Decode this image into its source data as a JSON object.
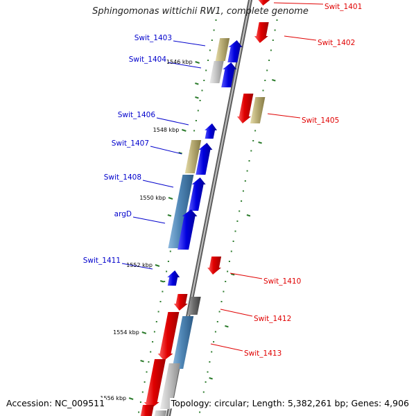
{
  "title": "Sphingomonas wittichii RW1, complete genome",
  "footer": {
    "accession": "Accession: NC_009511",
    "summary": "Topology: circular; Length: 5,382,261 bp; Genes: 4,906"
  },
  "colors": {
    "backbone": "#9a9a9a",
    "backbone_edge": "#555555",
    "ticks": "#2e7d2e",
    "forward_label": "#e00000",
    "reverse_label": "#0000cc",
    "red": "#e00000",
    "blue": "#0000dd",
    "olive": "#b9ad75",
    "steel": "#4f86b5",
    "gray": "#bdbdbd",
    "dark_gray": "#6b6b6b"
  },
  "scale_labels": [
    "1546 kbp",
    "1548 kbp",
    "1550 kbp",
    "1552 kbp",
    "1554 kbp",
    "1556 kbp"
  ],
  "gene_labels": {
    "forward": [
      "Swit_1401",
      "Swit_1402",
      "Swit_1405",
      "Swit_1410",
      "Swit_1412",
      "Swit_1413"
    ],
    "reverse": [
      "Swit_1403",
      "Swit_1404",
      "Swit_1406",
      "Swit_1407",
      "Swit_1408",
      "argD",
      "Swit_1411"
    ]
  }
}
